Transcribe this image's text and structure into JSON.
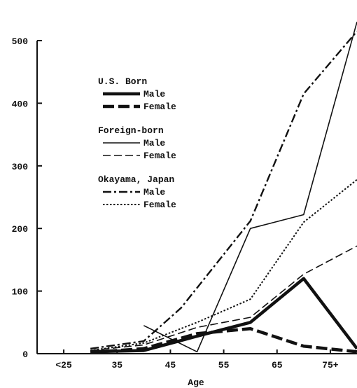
{
  "chart_data": {
    "type": "line",
    "xlabel": "Age",
    "ylabel": "",
    "categories": [
      "<25",
      "35",
      "45",
      "55",
      "65",
      "75+"
    ],
    "ylim": [
      0,
      500
    ],
    "yticks": [
      0,
      100,
      200,
      300,
      400,
      500
    ],
    "legend": {
      "placement": "top-center",
      "groups": [
        {
          "title": "U.S. Born",
          "entries": [
            {
              "label": "Male",
              "series": 0
            },
            {
              "label": "Female",
              "series": 1
            }
          ]
        },
        {
          "title": "Foreign-born",
          "entries": [
            {
              "label": "Male",
              "series": 2
            },
            {
              "label": "Female",
              "series": 3
            }
          ]
        },
        {
          "title": "Okayama, Japan",
          "entries": [
            {
              "label": "Male",
              "series": 4
            },
            {
              "label": "Female",
              "series": 5
            }
          ]
        }
      ]
    },
    "series": [
      {
        "name": "U.S. Born Male",
        "style": "thick-solid",
        "points": [
          [
            30,
            3
          ],
          [
            40,
            5
          ],
          [
            50,
            28
          ],
          [
            60,
            50
          ],
          [
            70,
            120
          ],
          [
            80,
            8
          ]
        ]
      },
      {
        "name": "U.S. Born Female",
        "style": "thick-dash",
        "points": [
          [
            30,
            2
          ],
          [
            40,
            8
          ],
          [
            50,
            32
          ],
          [
            60,
            40
          ],
          [
            70,
            12
          ],
          [
            80,
            3
          ]
        ]
      },
      {
        "name": "Foreign-born Male",
        "style": "thin-solid",
        "points": [
          [
            40,
            45
          ],
          [
            50,
            3
          ],
          [
            60,
            200
          ],
          [
            70,
            222
          ],
          [
            80,
            530
          ]
        ]
      },
      {
        "name": "Foreign-born Female",
        "style": "thin-dash",
        "points": [
          [
            30,
            5
          ],
          [
            40,
            14
          ],
          [
            50,
            42
          ],
          [
            60,
            58
          ],
          [
            70,
            127
          ],
          [
            80,
            172
          ]
        ]
      },
      {
        "name": "Okayama, Japan Male",
        "style": "dash-dot",
        "points": [
          [
            30,
            8
          ],
          [
            40,
            20
          ],
          [
            47,
            73
          ],
          [
            60,
            212
          ],
          [
            70,
            415
          ],
          [
            80,
            515
          ]
        ]
      },
      {
        "name": "Okayama, Japan Female",
        "style": "dotted",
        "points": [
          [
            30,
            5
          ],
          [
            40,
            17
          ],
          [
            50,
            50
          ],
          [
            60,
            87
          ],
          [
            70,
            210
          ],
          [
            80,
            278
          ]
        ]
      }
    ]
  }
}
